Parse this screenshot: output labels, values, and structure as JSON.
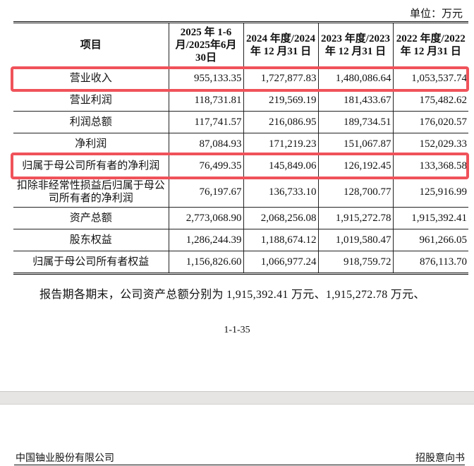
{
  "unit_label": "单位：万元",
  "table": {
    "headers": [
      "项目",
      "2025 年 1-6 月/2025年6月30日",
      "2024 年度/2024 年 12 月31 日",
      "2023 年度/2023 年 12 月31 日",
      "2022 年度/2022 年 12 月31 日"
    ],
    "rows": [
      {
        "item": "营业收入",
        "values": [
          "955,133.35",
          "1,727,877.83",
          "1,480,086.64",
          "1,053,537.74"
        ],
        "highlighted": true
      },
      {
        "item": "营业利润",
        "values": [
          "118,731.81",
          "219,569.19",
          "181,433.67",
          "175,482.62"
        ]
      },
      {
        "item": "利润总额",
        "values": [
          "117,741.57",
          "216,086.95",
          "189,734.51",
          "176,020.57"
        ]
      },
      {
        "item": "净利润",
        "values": [
          "87,084.93",
          "171,219.23",
          "151,067.87",
          "152,029.33"
        ]
      },
      {
        "item": "归属于母公司所有者的净利润",
        "values": [
          "76,499.35",
          "145,849.06",
          "126,192.45",
          "133,368.58"
        ],
        "highlighted": true
      },
      {
        "item": "扣除非经常性损益后归属于母公司所有者的净利润",
        "values": [
          "76,197.67",
          "136,733.10",
          "128,700.77",
          "125,916.99"
        ]
      },
      {
        "item": "资产总额",
        "values": [
          "2,773,068.90",
          "2,068,256.08",
          "1,915,272.78",
          "1,915,392.41"
        ]
      },
      {
        "item": "股东权益",
        "values": [
          "1,286,244.39",
          "1,188,674.12",
          "1,019,580.47",
          "961,266.05"
        ]
      },
      {
        "item": "归属于母公司所有者权益",
        "values": [
          "1,156,826.60",
          "1,066,977.24",
          "918,759.72",
          "876,113.70"
        ]
      }
    ]
  },
  "highlight_color": "#f0525a",
  "paragraph": "报告期各期末，公司资产总额分别为 1,915,392.41 万元、1,915,272.78 万元、",
  "page_number": "1-1-35",
  "footer": {
    "company": "中国铀业股份有限公司",
    "doc_type": "招股意向书"
  }
}
